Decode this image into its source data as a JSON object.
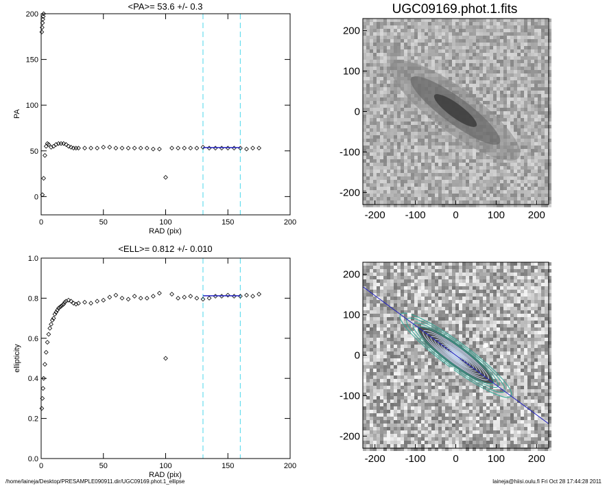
{
  "chart_data": [
    {
      "type": "scatter",
      "title": "<PA>=  53.6 +/-   0.3",
      "xlabel": "RAD (pix)",
      "ylabel": "PA",
      "xlim": [
        0,
        200
      ],
      "ylim": [
        -20,
        200
      ],
      "xticks": [
        "0",
        "50",
        "100",
        "150",
        "200"
      ],
      "yticks": [
        "0",
        "50",
        "100",
        "150",
        "200"
      ],
      "vlines": [
        130,
        160
      ],
      "series": [
        {
          "x": [
            1,
            2,
            3,
            4,
            5,
            6,
            8,
            10,
            12,
            14,
            16,
            18,
            20,
            22,
            24,
            26,
            28,
            30,
            35,
            40,
            45,
            50,
            55,
            60,
            65,
            70,
            75,
            80,
            85,
            90,
            95,
            100,
            105,
            110,
            115,
            120,
            125,
            130,
            135,
            140,
            145,
            150,
            155,
            160,
            165,
            170,
            175
          ],
          "y": [
            2,
            20,
            45,
            55,
            58,
            57,
            54,
            55,
            57,
            58,
            58,
            58,
            57,
            55,
            54,
            53,
            53,
            53,
            53,
            53,
            53,
            54,
            54,
            53,
            53,
            53,
            53,
            53,
            53,
            52,
            52,
            21,
            53,
            53,
            53,
            53,
            53,
            54,
            53,
            53,
            53,
            53,
            53,
            53,
            52,
            53,
            53
          ]
        },
        {
          "x": [
            0.5,
            0.8,
            1.1,
            1.4,
            1.7,
            2.0
          ],
          "y": [
            180,
            185,
            190,
            194,
            197,
            200
          ]
        }
      ],
      "fit": {
        "x": [
          130,
          160
        ],
        "y": [
          53.6,
          53.6
        ]
      }
    },
    {
      "type": "image",
      "title": "UGC09169.phot.1.fits",
      "xlim": [
        -230,
        230
      ],
      "ylim": [
        -230,
        230
      ],
      "xticks": [
        "-200",
        "-100",
        "0",
        "100",
        "200"
      ],
      "yticks": [
        "-200",
        "-100",
        "0",
        "100",
        "200"
      ]
    },
    {
      "type": "scatter",
      "title": "<ELL>= 0.812 +/-  0.010",
      "xlabel": "RAD (pix)",
      "ylabel": "ellipticity",
      "xlim": [
        0,
        200
      ],
      "ylim": [
        0.0,
        1.0
      ],
      "xticks": [
        "0",
        "50",
        "100",
        "150",
        "200"
      ],
      "yticks": [
        "0.0",
        "0.2",
        "0.4",
        "0.6",
        "0.8",
        "1.0"
      ],
      "vlines": [
        130,
        160
      ],
      "series": [
        {
          "x": [
            0.5,
            1,
            1.5,
            2,
            3,
            4,
            5,
            6,
            7,
            8,
            9,
            10,
            11,
            12,
            13,
            14,
            15,
            16,
            17,
            18,
            19,
            20,
            22,
            24,
            26,
            28,
            30,
            35,
            40,
            45,
            50,
            55,
            60,
            65,
            70,
            75,
            80,
            85,
            90,
            95,
            100,
            105,
            110,
            115,
            120,
            125,
            130,
            135,
            140,
            145,
            150,
            155,
            160,
            165,
            170,
            175
          ],
          "y": [
            0.25,
            0.3,
            0.35,
            0.4,
            0.47,
            0.53,
            0.58,
            0.62,
            0.65,
            0.67,
            0.69,
            0.7,
            0.72,
            0.73,
            0.74,
            0.75,
            0.755,
            0.76,
            0.765,
            0.77,
            0.78,
            0.785,
            0.79,
            0.785,
            0.775,
            0.77,
            0.775,
            0.78,
            0.775,
            0.785,
            0.79,
            0.805,
            0.815,
            0.8,
            0.795,
            0.81,
            0.8,
            0.8,
            0.81,
            0.825,
            0.5,
            0.82,
            0.8,
            0.805,
            0.81,
            0.8,
            0.795,
            0.8,
            0.81,
            0.81,
            0.815,
            0.81,
            0.81,
            0.815,
            0.81,
            0.82
          ]
        }
      ],
      "fit": {
        "x": [
          130,
          160
        ],
        "y": [
          0.812,
          0.812
        ]
      }
    },
    {
      "type": "image",
      "xlim": [
        -230,
        230
      ],
      "ylim": [
        -230,
        230
      ],
      "xticks": [
        "-200",
        "-100",
        "0",
        "100",
        "200"
      ],
      "yticks": [
        "-200",
        "-100",
        "0",
        "100",
        "200"
      ],
      "pa_line_deg": 53.6,
      "ellipticity": 0.812
    }
  ],
  "footer": {
    "left": "/home/laineja/Desktop/PRESAMPLE090911.dir/UGC09169.phot.1_ellipse",
    "right": "laineja@hiisi.oulu.fi  Fri Oct 28 17:44:28 2011"
  },
  "colors": {
    "fit": "#2020c0",
    "vline": "#66ddee",
    "contour_outer": "#33aa99",
    "contour_inner": "#c8d8f0"
  }
}
